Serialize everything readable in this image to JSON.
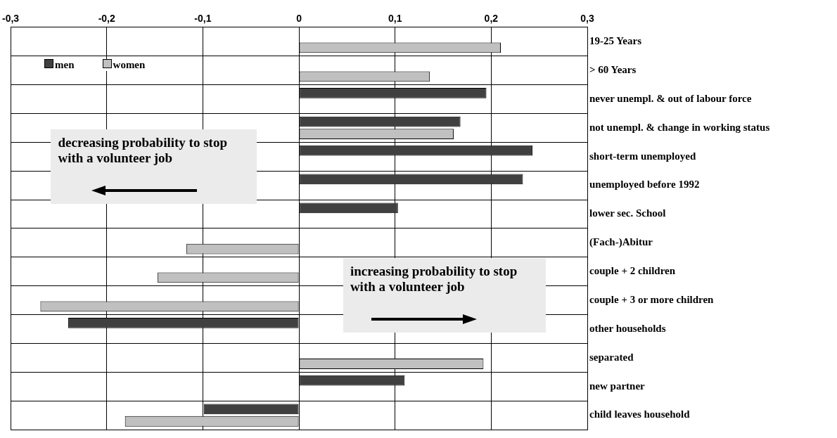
{
  "chart_data": {
    "type": "bar",
    "orientation": "horizontal",
    "categories": [
      "19-25 Years",
      "> 60 Years",
      "never unempl. & out of labour force",
      "not unempl. & change in working status",
      "short-term unemployed",
      "unemployed before 1992",
      "lower sec. School",
      "(Fach-)Abitur",
      "couple + 2 children",
      "couple + 3 or more children",
      "other households",
      "separated",
      "new partner",
      "child leaves household"
    ],
    "series": [
      {
        "name": "men",
        "color": "#404040",
        "values": [
          null,
          null,
          0.195,
          0.168,
          0.243,
          0.233,
          0.103,
          null,
          null,
          null,
          -0.24,
          null,
          0.11,
          -0.099
        ]
      },
      {
        "name": "women",
        "color": "#c0c0c0",
        "values": [
          0.21,
          0.136,
          null,
          0.161,
          null,
          null,
          null,
          -0.117,
          -0.147,
          -0.269,
          null,
          0.192,
          null,
          -0.181
        ]
      }
    ],
    "xlim": [
      -0.3,
      0.3
    ],
    "xticks": [
      {
        "value": -0.3,
        "label": "-0,3"
      },
      {
        "value": -0.2,
        "label": "-0,2"
      },
      {
        "value": -0.1,
        "label": "-0,1"
      },
      0,
      {
        "value": 0.1,
        "label": "0,1"
      },
      {
        "value": 0.2,
        "label": "0,2"
      },
      {
        "value": 0.3,
        "label": "0,3"
      }
    ],
    "grid": true,
    "legend": "top left",
    "annotations": [
      "decreasing probability to stop with a volunteer job",
      "increasing probability to stop with a volunteer job"
    ]
  }
}
